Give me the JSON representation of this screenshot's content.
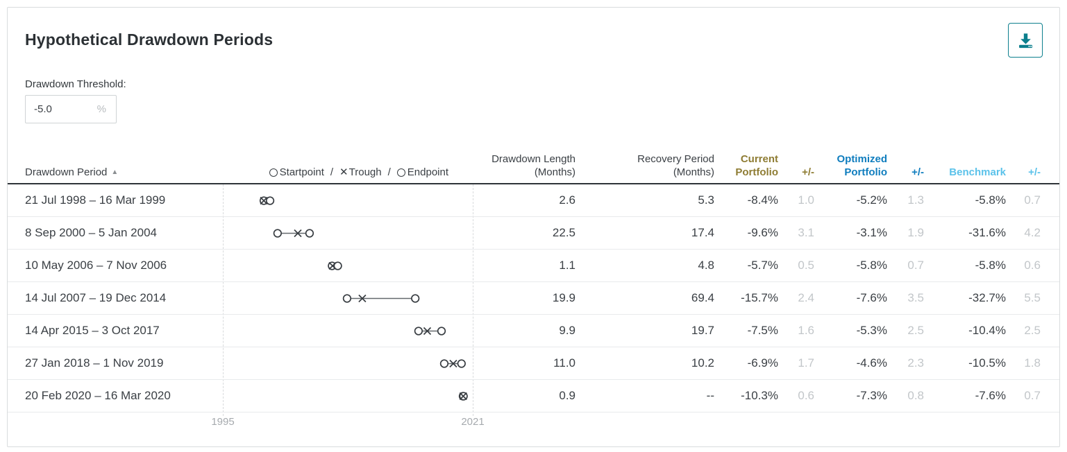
{
  "title": "Hypothetical Drawdown Periods",
  "icons": {
    "download": "download-tray-arrow",
    "sort_ascending": "▲",
    "trough": "✕"
  },
  "colors": {
    "accent_teal": "#0c7f8d",
    "current_portfolio": "#8e7c33",
    "optimized_portfolio": "#0f7dbe",
    "benchmark": "#5bc2ea",
    "muted_value": "#c2c6c9",
    "text_dark": "#3a3f44"
  },
  "threshold": {
    "label": "Drawdown Threshold:",
    "value": "-5.0",
    "unit": "%"
  },
  "table": {
    "headers": {
      "period": "Drawdown Period",
      "length_line1": "Drawdown Length",
      "length_line2": "(Months)",
      "recovery_line1": "Recovery Period",
      "recovery_line2": "(Months)",
      "current_line1": "Current",
      "current_line2": "Portfolio",
      "pm": "+/-",
      "optimized_line1": "Optimized",
      "optimized_line2": "Portfolio",
      "benchmark": "Benchmark"
    },
    "legend": {
      "startpoint": "Startpoint",
      "trough": "Trough",
      "endpoint": "Endpoint",
      "separator": "/"
    },
    "axis": {
      "start": "1995",
      "end": "2021"
    },
    "rows": [
      {
        "period": "21 Jul 1998 – 16 Mar 1999",
        "length": "2.6",
        "recovery": "5.3",
        "current": "-8.4%",
        "current_diff": "1.0",
        "optimized": "-5.2%",
        "optimized_diff": "1.3",
        "benchmark": "-5.8%",
        "benchmark_diff": "0.7",
        "timeline": {
          "start": 0.164,
          "trough": 0.164,
          "end": 0.189
        }
      },
      {
        "period": "8 Sep 2000 – 5 Jan 2004",
        "length": "22.5",
        "recovery": "17.4",
        "current": "-9.6%",
        "current_diff": "3.1",
        "optimized": "-3.1%",
        "optimized_diff": "1.9",
        "benchmark": "-31.6%",
        "benchmark_diff": "4.2",
        "timeline": {
          "start": 0.219,
          "trough": 0.3,
          "end": 0.347
        }
      },
      {
        "period": "10 May 2006 – 7 Nov 2006",
        "length": "1.1",
        "recovery": "4.8",
        "current": "-5.7%",
        "current_diff": "0.5",
        "optimized": "-5.8%",
        "optimized_diff": "0.7",
        "benchmark": "-5.8%",
        "benchmark_diff": "0.6",
        "timeline": {
          "start": 0.437,
          "trough": 0.439,
          "end": 0.46
        }
      },
      {
        "period": "14 Jul 2007 – 19 Dec 2014",
        "length": "19.9",
        "recovery": "69.4",
        "current": "-15.7%",
        "current_diff": "2.4",
        "optimized": "-7.6%",
        "optimized_diff": "3.5",
        "benchmark": "-32.7%",
        "benchmark_diff": "5.5",
        "timeline": {
          "start": 0.497,
          "trough": 0.558,
          "end": 0.77
        }
      },
      {
        "period": "14 Apr 2015 – 3 Oct 2017",
        "length": "9.9",
        "recovery": "19.7",
        "current": "-7.5%",
        "current_diff": "1.6",
        "optimized": "-5.3%",
        "optimized_diff": "2.5",
        "benchmark": "-10.4%",
        "benchmark_diff": "2.5",
        "timeline": {
          "start": 0.783,
          "trough": 0.818,
          "end": 0.875
        }
      },
      {
        "period": "27 Jan 2018 – 1 Nov 2019",
        "length": "11.0",
        "recovery": "10.2",
        "current": "-6.9%",
        "current_diff": "1.7",
        "optimized": "-4.6%",
        "optimized_diff": "2.3",
        "benchmark": "-10.5%",
        "benchmark_diff": "1.8",
        "timeline": {
          "start": 0.886,
          "trough": 0.922,
          "end": 0.955
        }
      },
      {
        "period": "20 Feb 2020 – 16 Mar 2020",
        "length": "0.9",
        "recovery": "--",
        "current": "-10.3%",
        "current_diff": "0.6",
        "optimized": "-7.3%",
        "optimized_diff": "0.8",
        "benchmark": "-7.6%",
        "benchmark_diff": "0.7",
        "timeline": {
          "start": 0.961,
          "trough": 0.962,
          "end": 0.963
        }
      }
    ]
  }
}
